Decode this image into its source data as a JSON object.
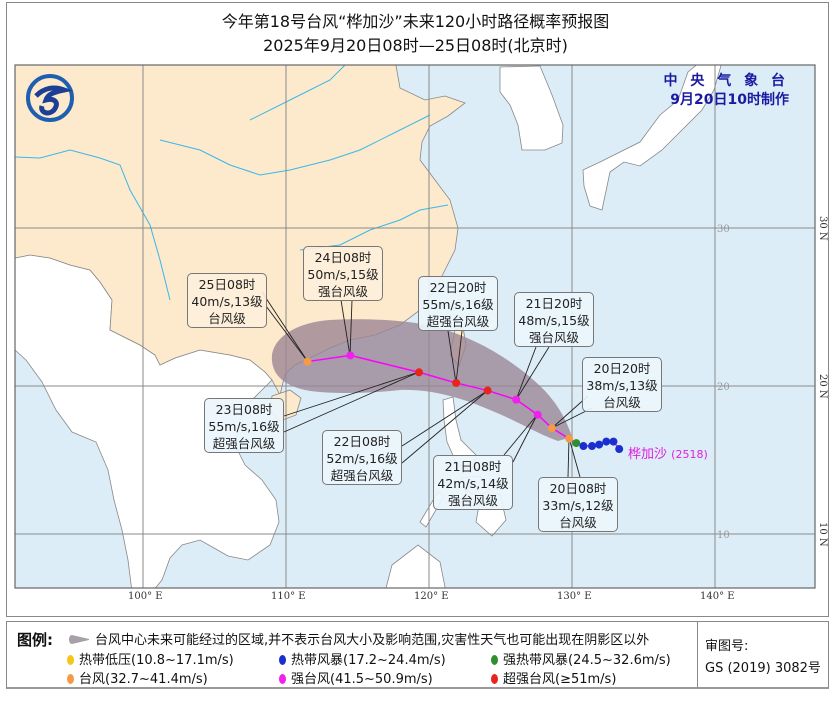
{
  "header": {
    "title": "今年第18号台风“桦加沙”未来120小时路径概率预报图",
    "subtitle": "2025年9月20日08时—25日08时(北京时)",
    "agency": "中 央 气 象 台",
    "issued": "9月20日10时制作"
  },
  "storm": {
    "name": "桦加沙",
    "code": "(2518)"
  },
  "colors": {
    "tropical_depression": "#f5c518",
    "tropical_storm": "#1a2fd0",
    "severe_tropical_storm": "#2f8f2f",
    "typhoon": "#f59a45",
    "severe_typhoon": "#f020f0",
    "super_typhoon": "#e8251c",
    "cone": "#9a8493",
    "track": "#ff00ff",
    "land_china": "#fde9cc",
    "ocean": "#dcedf8"
  },
  "forecast": [
    {
      "time": "20日08时",
      "wind": "33m/s,12级",
      "level": "台风级",
      "category": "typhoon",
      "lon": 129.8,
      "lat": 16.5
    },
    {
      "time": "20日20时",
      "wind": "38m/s,13级",
      "level": "台风级",
      "category": "typhoon",
      "lon": 128.6,
      "lat": 17.2
    },
    {
      "time": "21日08时",
      "wind": "42m/s,14级",
      "level": "强台风级",
      "category": "severe_typhoon",
      "lon": 127.6,
      "lat": 18.1
    },
    {
      "time": "21日20时",
      "wind": "48m/s,15级",
      "level": "强台风级",
      "category": "severe_typhoon",
      "lon": 126.1,
      "lat": 19.1
    },
    {
      "time": "22日08时",
      "wind": "52m/s,16级",
      "level": "超强台风级",
      "category": "super_typhoon",
      "lon": 124.1,
      "lat": 19.7
    },
    {
      "time": "22日20时",
      "wind": "55m/s,16级",
      "level": "超强台风级",
      "category": "super_typhoon",
      "lon": 121.9,
      "lat": 20.2
    },
    {
      "time": "23日08时",
      "wind": "55m/s,16级",
      "level": "超强台风级",
      "category": "super_typhoon",
      "lon": 119.3,
      "lat": 20.9
    },
    {
      "time": "24日08时",
      "wind": "50m/s,15级",
      "level": "强台风级",
      "category": "severe_typhoon",
      "lon": 114.5,
      "lat": 22.0
    },
    {
      "time": "25日08时",
      "wind": "40m/s,13级",
      "level": "台风级",
      "category": "typhoon",
      "lon": 111.5,
      "lat": 21.6
    }
  ],
  "past_track": [
    {
      "category": "tropical_storm",
      "lon": 133.3,
      "lat": 15.8
    },
    {
      "category": "tropical_storm",
      "lon": 132.9,
      "lat": 16.3
    },
    {
      "category": "tropical_storm",
      "lon": 132.4,
      "lat": 16.3
    },
    {
      "category": "tropical_storm",
      "lon": 131.9,
      "lat": 16.1
    },
    {
      "category": "tropical_storm",
      "lon": 131.4,
      "lat": 16.0
    },
    {
      "category": "tropical_storm",
      "lon": 130.8,
      "lat": 16.0
    },
    {
      "category": "severe_tropical_storm",
      "lon": 130.3,
      "lat": 16.2
    }
  ],
  "axes": {
    "lon_labels": [
      "100° E",
      "110° E",
      "120° E",
      "130° E",
      "140° E"
    ],
    "lat_labels": [
      "30 N",
      "20 N",
      "10 N"
    ],
    "grid_inline": [
      "30",
      "20",
      "10"
    ]
  },
  "legend": {
    "label": "图例:",
    "cone": "台风中心未来可能经过的区域,并不表示台风大小及影响范围,灾害性天气也可能出现在阴影区以外",
    "items": [
      {
        "text": "热带低压(10.8~17.1m/s)",
        "category": "tropical_depression"
      },
      {
        "text": "热带风暴(17.2~24.4m/s)",
        "category": "tropical_storm"
      },
      {
        "text": "强热带风暴(24.5~32.6m/s)",
        "category": "severe_tropical_storm"
      },
      {
        "text": "台风(32.7~41.4m/s)",
        "category": "typhoon"
      },
      {
        "text": "强台风(41.5~50.9m/s)",
        "category": "severe_typhoon"
      },
      {
        "text": "超强台风(≥51m/s)",
        "category": "super_typhoon"
      }
    ],
    "approval_label": "审图号:",
    "approval_no": "GS (2019) 3082号"
  }
}
